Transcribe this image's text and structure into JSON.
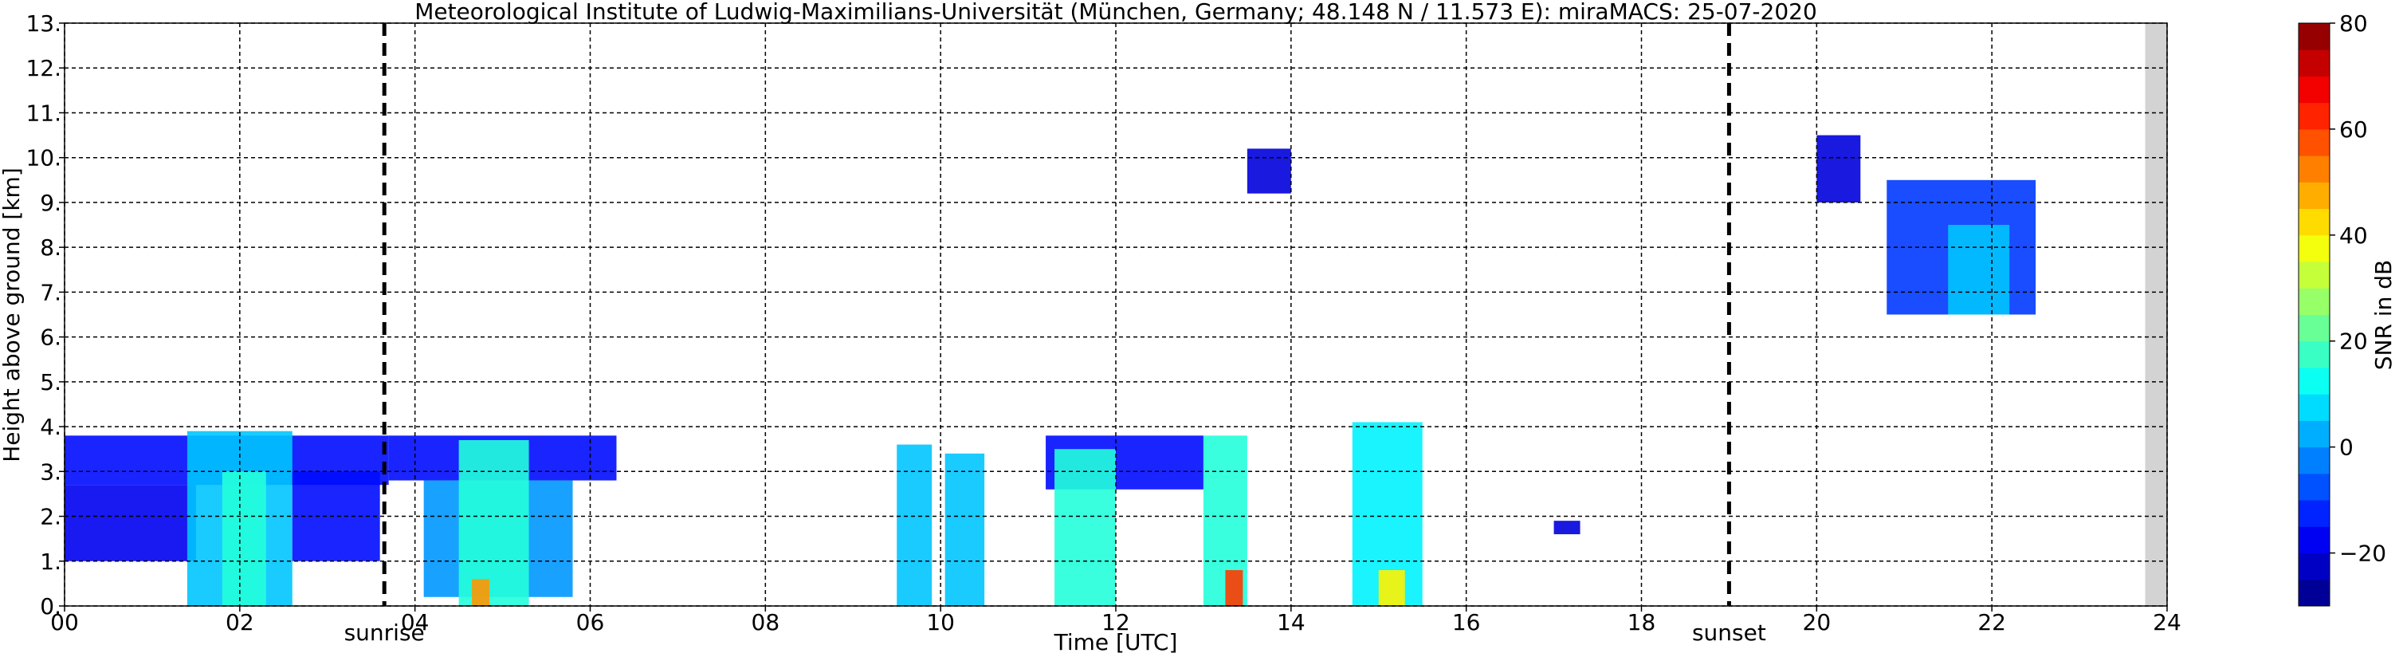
{
  "chart_data": {
    "type": "radar-echo",
    "title": "Meteorological Institute of Ludwig-Maximilians-Universität (München, Germany; 48.148 N / 11.573 E):    miraMACS: 25-07-2020",
    "x_label": "Time [UTC]",
    "y_label": "Height above ground [km]",
    "xlim": [
      0,
      24
    ],
    "ylim": [
      0,
      13
    ],
    "xticks": [
      {
        "value": 0,
        "label": "00"
      },
      {
        "value": 2,
        "label": "02"
      },
      {
        "value": 4,
        "label": "04"
      },
      {
        "value": 6,
        "label": "06"
      },
      {
        "value": 8,
        "label": "08"
      },
      10,
      12,
      14,
      16,
      18,
      20,
      22,
      24
    ],
    "yticks": [
      {
        "value": 0,
        "label": "0."
      },
      {
        "value": 1,
        "label": "1."
      },
      {
        "value": 2,
        "label": "2."
      },
      {
        "value": 3,
        "label": "3."
      },
      {
        "value": 4,
        "label": "4."
      },
      {
        "value": 5,
        "label": "5."
      },
      {
        "value": 6,
        "label": "6."
      },
      {
        "value": 7,
        "label": "7."
      },
      {
        "value": 8,
        "label": "8."
      },
      {
        "value": 9,
        "label": "9."
      },
      {
        "value": 10,
        "label": "10."
      },
      {
        "value": 11,
        "label": "11."
      },
      {
        "value": 12,
        "label": "12."
      },
      {
        "value": 13,
        "label": "13."
      }
    ],
    "grid": true,
    "colormap": "jet",
    "colorbar_label": "SNR in dB",
    "clim": [
      -30,
      80
    ],
    "cticks": [
      {
        "value": -20,
        "label": "−20"
      },
      0,
      20,
      40,
      60,
      80
    ],
    "no_data_range": [
      23.75,
      24
    ],
    "annotations": [
      {
        "x": 3.65,
        "label": "sunrise"
      },
      {
        "x": 19.0,
        "label": "sunset"
      }
    ],
    "echoes": [
      {
        "x": [
          0,
          3.7
        ],
        "height": [
          2.7,
          3.8
        ],
        "snr": -15
      },
      {
        "x": [
          0,
          1.5
        ],
        "height": [
          1.0,
          2.7
        ],
        "snr": -18
      },
      {
        "x": [
          1.4,
          2.6
        ],
        "height": [
          0,
          3.9
        ],
        "snr": 5
      },
      {
        "x": [
          1.8,
          2.3
        ],
        "height": [
          0,
          3.0
        ],
        "snr": 15
      },
      {
        "x": [
          2.6,
          3.6
        ],
        "height": [
          1.0,
          3.0
        ],
        "snr": -15
      },
      {
        "x": [
          3.7,
          6.3
        ],
        "height": [
          2.8,
          3.8
        ],
        "snr": -15
      },
      {
        "x": [
          4.1,
          5.8
        ],
        "height": [
          0.2,
          2.8
        ],
        "snr": 0
      },
      {
        "x": [
          4.5,
          5.3
        ],
        "height": [
          0,
          3.7
        ],
        "snr": 15
      },
      {
        "x": [
          4.65,
          4.85
        ],
        "height": [
          0,
          0.6
        ],
        "snr": 50
      },
      {
        "x": [
          9.5,
          9.9
        ],
        "height": [
          0,
          3.6
        ],
        "snr": 5
      },
      {
        "x": [
          10.05,
          10.5
        ],
        "height": [
          0,
          3.4
        ],
        "snr": 5
      },
      {
        "x": [
          11.2,
          13.0
        ],
        "height": [
          2.6,
          3.8
        ],
        "snr": -15
      },
      {
        "x": [
          11.3,
          12.0
        ],
        "height": [
          0,
          3.5
        ],
        "snr": 15
      },
      {
        "x": [
          13.0,
          13.5
        ],
        "height": [
          0,
          3.8
        ],
        "snr": 15
      },
      {
        "x": [
          13.25,
          13.45
        ],
        "height": [
          0,
          0.8
        ],
        "snr": 60
      },
      {
        "x": [
          14.7,
          15.5
        ],
        "height": [
          0,
          4.1
        ],
        "snr": 10
      },
      {
        "x": [
          15.0,
          15.3
        ],
        "height": [
          0,
          0.8
        ],
        "snr": 40
      },
      {
        "x": [
          13.5,
          14.0
        ],
        "height": [
          9.2,
          10.2
        ],
        "snr": -20
      },
      {
        "x": [
          17.0,
          17.3
        ],
        "height": [
          1.6,
          1.9
        ],
        "snr": -20
      },
      {
        "x": [
          20.0,
          20.5
        ],
        "height": [
          9.0,
          10.5
        ],
        "snr": -20
      },
      {
        "x": [
          20.8,
          22.5
        ],
        "height": [
          6.5,
          9.5
        ],
        "snr": -10
      },
      {
        "x": [
          21.5,
          22.2
        ],
        "height": [
          6.5,
          8.5
        ],
        "snr": 5
      }
    ]
  }
}
